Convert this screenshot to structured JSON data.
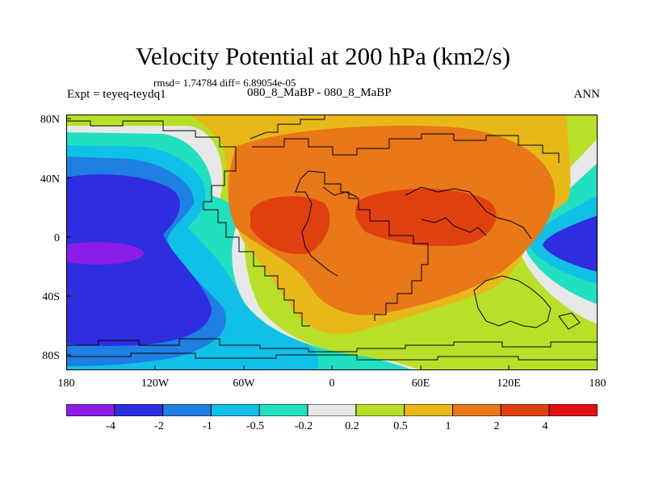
{
  "title": "Velocity Potential at 200 hPa (km2/s)",
  "stats": "rmsd= 1.74784 diff= 6.89054e-05",
  "left_label": "Expt = teyeq-teydq1",
  "center_label": "080_8_MaBP - 080_8_MaBP",
  "right_label": "ANN",
  "lat_labels": [
    "80N",
    "40N",
    "0",
    "40S",
    "80S"
  ],
  "lon_labels": [
    "180",
    "120W",
    "60W",
    "0",
    "60E",
    "120E",
    "180"
  ],
  "colorbar": {
    "labels": [
      "-4",
      "-2",
      "-1",
      "-0.5",
      "-0.2",
      "0.2",
      "0.5",
      "1",
      "2",
      "4"
    ],
    "colors": [
      "#8b1de6",
      "#2e2de0",
      "#1f7fe3",
      "#10c0e6",
      "#20e0c0",
      "#e8e8e8",
      "#b8e028",
      "#e8b818",
      "#e87818",
      "#e04010",
      "#e01010"
    ]
  },
  "colors": {
    "background": "#ffffff",
    "coastline": "#000000"
  }
}
